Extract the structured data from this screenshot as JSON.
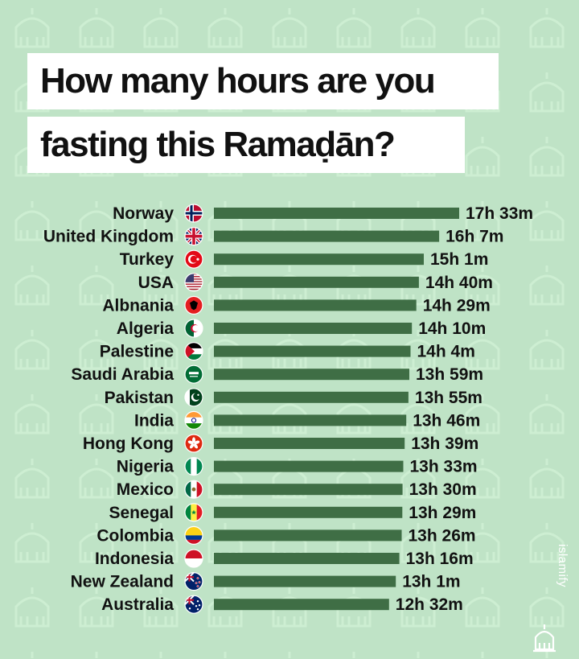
{
  "title": {
    "line1": "How many hours are you",
    "line2": "fasting this Ramaḍān?"
  },
  "watermark": "islamify",
  "colors": {
    "background": "#bfe3c6",
    "bar": "#3f6e45",
    "pattern": "#cdeed2"
  },
  "chart_data": {
    "type": "bar",
    "orientation": "horizontal",
    "categories": [
      "Norway",
      "United Kingdom",
      "Turkey",
      "USA",
      "Albnania",
      "Algeria",
      "Palestine",
      "Saudi Arabia",
      "Pakistan",
      "India",
      "Hong Kong",
      "Nigeria",
      "Mexico",
      "Senegal",
      "Colombia",
      "Indonesia",
      "New Zealand",
      "Australia"
    ],
    "values_minutes": [
      1053,
      967,
      901,
      880,
      869,
      850,
      844,
      839,
      835,
      826,
      819,
      813,
      810,
      809,
      806,
      796,
      781,
      752
    ],
    "value_labels": [
      "17h 33m",
      "16h 7m",
      "15h 1m",
      "14h 40m",
      "14h 29m",
      "14h 10m",
      "14h 4m",
      "13h 59m",
      "13h 55m",
      "13h 46m",
      "13h 39m",
      "13h 33m",
      "13h 30m",
      "13h 29m",
      "13h 26m",
      "13h 16m",
      "13h 1m",
      "12h 32m"
    ],
    "flag_icons": [
      "norway-flag-icon",
      "uk-flag-icon",
      "turkey-flag-icon",
      "usa-flag-icon",
      "albania-flag-icon",
      "algeria-flag-icon",
      "palestine-flag-icon",
      "saudi-arabia-flag-icon",
      "pakistan-flag-icon",
      "india-flag-icon",
      "hong-kong-flag-icon",
      "nigeria-flag-icon",
      "mexico-flag-icon",
      "senegal-flag-icon",
      "colombia-flag-icon",
      "indonesia-flag-icon",
      "new-zealand-flag-icon",
      "australia-flag-icon"
    ],
    "xlim": [
      0,
      1053
    ],
    "grid": false,
    "legend": "none"
  }
}
